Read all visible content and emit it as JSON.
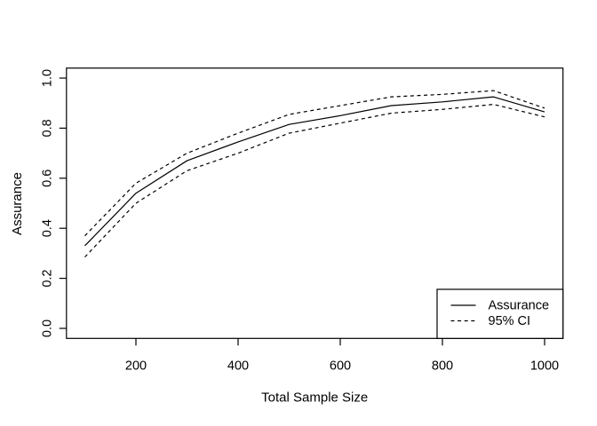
{
  "figure": {
    "background": "#ffffff",
    "foreground": "#000000"
  },
  "chart_data": {
    "type": "line",
    "title": "",
    "xlabel": "Total Sample Size",
    "ylabel": "Assurance",
    "xlim": [
      100,
      1000
    ],
    "ylim": [
      0.0,
      1.0
    ],
    "grid": false,
    "x": [
      100,
      200,
      300,
      400,
      500,
      600,
      700,
      800,
      900,
      1000
    ],
    "series": [
      {
        "name": "Assurance",
        "style": "solid",
        "color": "#000000",
        "values": [
          0.33,
          0.54,
          0.67,
          0.745,
          0.815,
          0.85,
          0.89,
          0.905,
          0.925,
          0.865
        ]
      },
      {
        "name": "95% CI upper",
        "style": "dashed",
        "color": "#000000",
        "values": [
          0.37,
          0.58,
          0.7,
          0.78,
          0.855,
          0.89,
          0.925,
          0.935,
          0.95,
          0.88
        ]
      },
      {
        "name": "95% CI lower",
        "style": "dashed",
        "color": "#000000",
        "values": [
          0.285,
          0.5,
          0.63,
          0.7,
          0.78,
          0.82,
          0.86,
          0.875,
          0.895,
          0.845
        ]
      }
    ],
    "x_tick_values": [
      200,
      400,
      600,
      800,
      1000
    ],
    "x_tick_labels": [
      "200",
      "400",
      "600",
      "800",
      "1000"
    ],
    "y_tick_values": [
      0.0,
      0.2,
      0.4,
      0.6,
      0.8,
      1.0
    ],
    "y_tick_labels": [
      "0.0",
      "0.2",
      "0.4",
      "0.6",
      "0.8",
      "1.0"
    ],
    "legend": {
      "position": "bottom-right",
      "entries": [
        {
          "label": "Assurance",
          "line_style": "solid"
        },
        {
          "label": "95% CI",
          "line_style": "dashed"
        }
      ]
    }
  }
}
